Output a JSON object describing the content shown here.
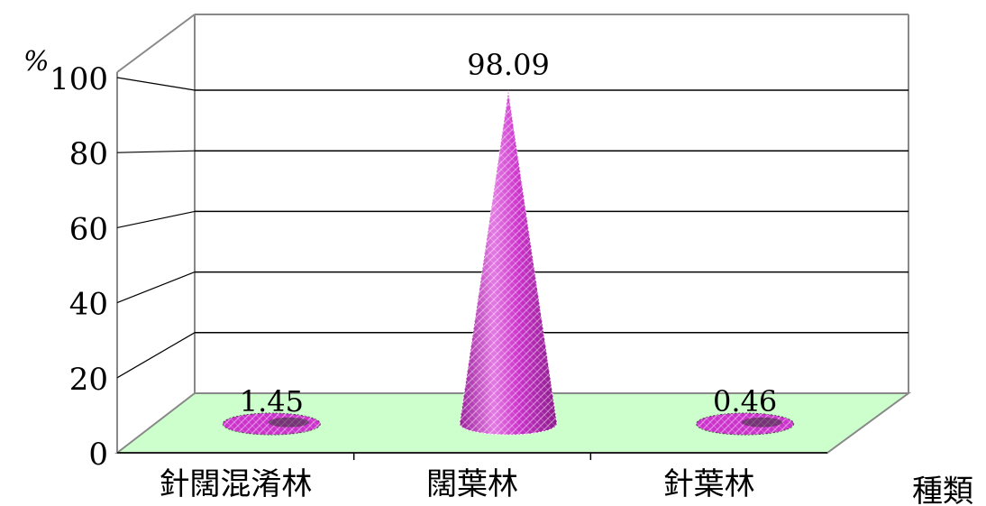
{
  "chart_data": {
    "type": "bar",
    "bar_shape": "cone",
    "three_d": true,
    "title": "",
    "xlabel": "種類",
    "ylabel": "%",
    "ylim": [
      0,
      100
    ],
    "yticks": [
      "0",
      "20",
      "40",
      "60",
      "80",
      "100"
    ],
    "categories": [
      "針闊混淆林",
      "闊葉林",
      "針葉林"
    ],
    "values": [
      1.45,
      98.09,
      0.46
    ],
    "data_labels": [
      "1.45",
      "98.09",
      "0.46"
    ],
    "grid": true,
    "legend": "none",
    "colors": {
      "cone": "#cc33cc",
      "cone_light": "#f08cf0",
      "cone_dark": "#8a1a8a",
      "floor": "#ccffcc",
      "grid": "#000000",
      "wall_edge": "#888888"
    }
  }
}
